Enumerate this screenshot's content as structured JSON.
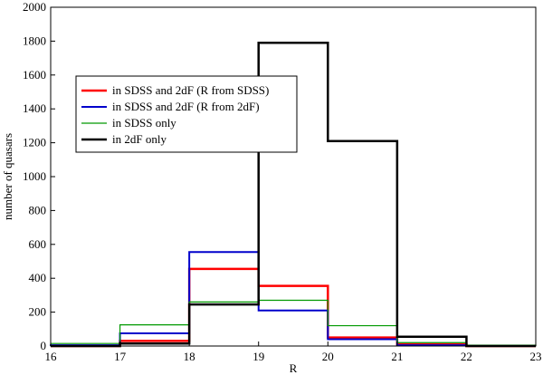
{
  "chart_data": {
    "type": "histogram-step",
    "xlabel": "R",
    "ylabel": "number of quasars",
    "xlim": [
      16,
      23
    ],
    "ylim": [
      0,
      2000
    ],
    "x_ticks": [
      16,
      17,
      18,
      19,
      20,
      21,
      22,
      23
    ],
    "y_ticks": [
      0,
      200,
      400,
      600,
      800,
      1000,
      1200,
      1400,
      1600,
      1800,
      2000
    ],
    "bin_edges": [
      16,
      17,
      18,
      19,
      20,
      21,
      22,
      23
    ],
    "legend_position": "upper-left",
    "series": [
      {
        "name": "in SDSS and 2dF (R from SDSS)",
        "color": "#ff0000",
        "values": [
          0,
          30,
          455,
          355,
          50,
          10,
          0
        ]
      },
      {
        "name": "in SDSS and 2dF (R from 2dF)",
        "color": "#0000cc",
        "values": [
          5,
          75,
          555,
          210,
          40,
          5,
          0
        ]
      },
      {
        "name": "in SDSS only",
        "color": "#009900",
        "values": [
          15,
          125,
          260,
          270,
          120,
          20,
          5
        ]
      },
      {
        "name": "in 2dF only",
        "color": "#000000",
        "values": [
          0,
          15,
          245,
          1790,
          1210,
          55,
          0
        ]
      }
    ]
  }
}
